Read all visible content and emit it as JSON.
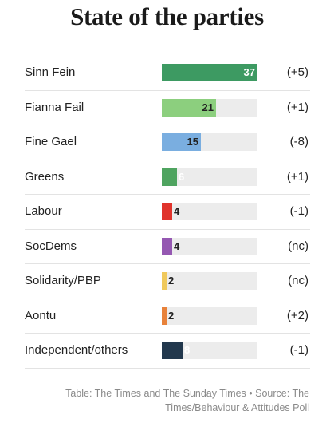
{
  "title": "State of the parties",
  "chart_data": {
    "type": "bar",
    "categories": [
      "Sinn Fein",
      "Fianna Fail",
      "Fine Gael",
      "Greens",
      "Labour",
      "SocDems",
      "Solidarity/PBP",
      "Aontu",
      "Independent/others"
    ],
    "values": [
      37,
      21,
      15,
      6,
      4,
      4,
      2,
      2,
      8
    ],
    "changes": [
      "(+5)",
      "(+1)",
      "(-8)",
      "(+1)",
      "(-1)",
      "(nc)",
      "(nc)",
      "(+2)",
      "(-1)"
    ],
    "colors": [
      "#3d9a62",
      "#8ccf7e",
      "#7aaee0",
      "#4fa460",
      "#e0332c",
      "#9558b2",
      "#f0c95c",
      "#e8823a",
      "#22384d"
    ],
    "label_colors": [
      "#ffffff",
      "#222222",
      "#222222",
      "#ffffff",
      "#222222",
      "#222222",
      "#222222",
      "#222222",
      "#ffffff"
    ],
    "xlim": [
      0,
      37
    ],
    "track_color": "#ececec"
  },
  "footer": "Table: The Times and The Sunday Times • Source: The Times/Behaviour & Attitudes Poll"
}
